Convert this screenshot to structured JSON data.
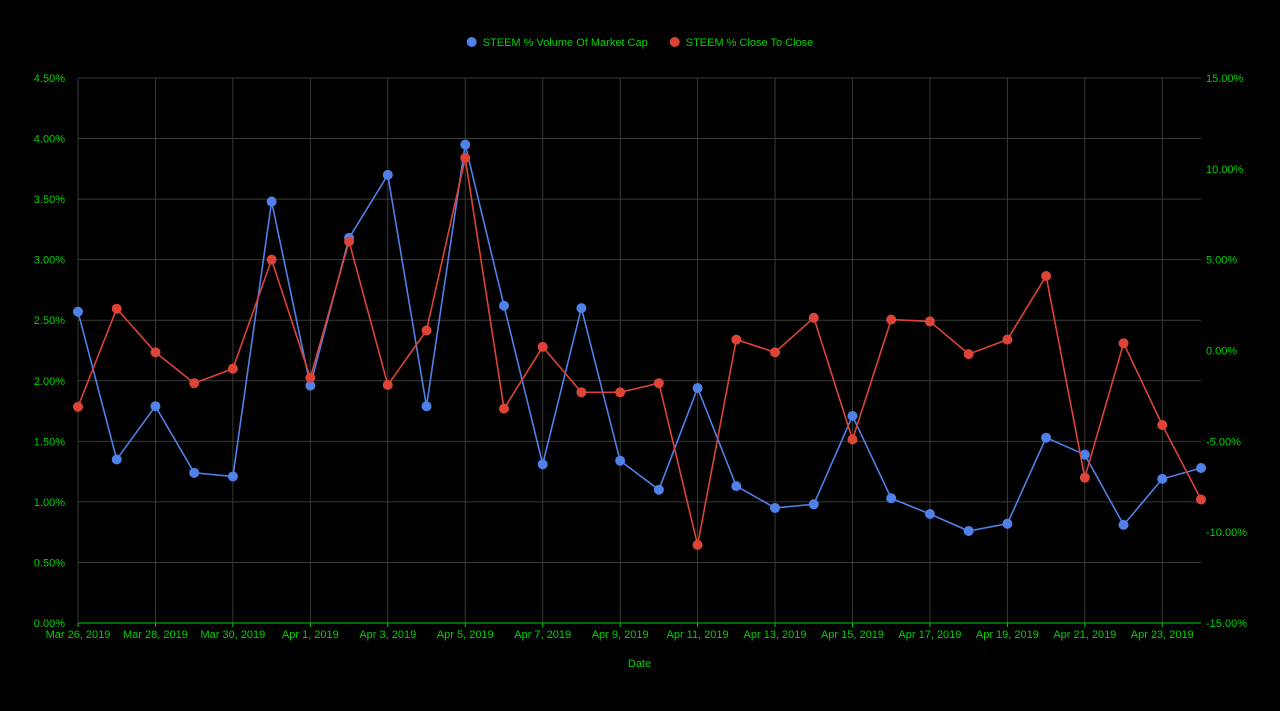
{
  "chart_data": {
    "type": "line",
    "xlabel": "Date",
    "x": [
      "Mar 26, 2019",
      "Mar 27, 2019",
      "Mar 28, 2019",
      "Mar 29, 2019",
      "Mar 30, 2019",
      "Mar 31, 2019",
      "Apr 1, 2019",
      "Apr 2, 2019",
      "Apr 3, 2019",
      "Apr 4, 2019",
      "Apr 5, 2019",
      "Apr 6, 2019",
      "Apr 7, 2019",
      "Apr 8, 2019",
      "Apr 9, 2019",
      "Apr 10, 2019",
      "Apr 11, 2019",
      "Apr 12, 2019",
      "Apr 13, 2019",
      "Apr 14, 2019",
      "Apr 15, 2019",
      "Apr 16, 2019",
      "Apr 17, 2019",
      "Apr 18, 2019",
      "Apr 19, 2019",
      "Apr 20, 2019",
      "Apr 21, 2019",
      "Apr 22, 2019",
      "Apr 23, 2019",
      "Apr 24, 2019"
    ],
    "x_tick_labels": [
      "Mar 26, 2019",
      "Mar 28, 2019",
      "Mar 30, 2019",
      "Apr 1, 2019",
      "Apr 3, 2019",
      "Apr 5, 2019",
      "Apr 7, 2019",
      "Apr 9, 2019",
      "Apr 11, 2019",
      "Apr 13, 2019",
      "Apr 15, 2019",
      "Apr 17, 2019",
      "Apr 19, 2019",
      "Apr 21, 2019",
      "Apr 23, 2019"
    ],
    "y_left": {
      "ylim": [
        0,
        4.5
      ],
      "ticks": [
        0,
        0.5,
        1.0,
        1.5,
        2.0,
        2.5,
        3.0,
        3.5,
        4.0,
        4.5
      ],
      "tick_labels": [
        "0.00%",
        "0.50%",
        "1.00%",
        "1.50%",
        "2.00%",
        "2.50%",
        "3.00%",
        "3.50%",
        "4.00%",
        "4.50%"
      ]
    },
    "y_right": {
      "ylim": [
        -15,
        15
      ],
      "ticks": [
        -15,
        -10,
        -5,
        0,
        5,
        10,
        15
      ],
      "tick_labels": [
        "-15.00%",
        "-10.00%",
        "-5.00%",
        "0.00%",
        "5.00%",
        "10.00%",
        "15.00%"
      ]
    },
    "series": [
      {
        "name": "STEEM % Volume Of Market Cap",
        "axis": "left",
        "color": "#4f81e8",
        "values": [
          2.57,
          1.35,
          1.79,
          1.24,
          1.21,
          3.48,
          1.96,
          3.18,
          3.7,
          1.79,
          3.95,
          2.62,
          1.31,
          2.6,
          1.34,
          1.1,
          1.94,
          1.13,
          0.95,
          0.98,
          1.71,
          1.03,
          0.9,
          0.76,
          0.82,
          1.53,
          1.39,
          0.81,
          1.19,
          1.28
        ]
      },
      {
        "name": "STEEM % Close To Close",
        "axis": "right",
        "color": "#db4437",
        "values": [
          -3.1,
          2.3,
          -0.1,
          -1.8,
          -1.0,
          5.0,
          -1.5,
          6.0,
          -1.9,
          1.1,
          10.6,
          -3.2,
          0.2,
          -2.3,
          -2.3,
          -1.8,
          -10.7,
          0.6,
          -0.1,
          1.8,
          -4.9,
          1.7,
          1.6,
          -0.2,
          0.6,
          4.1,
          -7.0,
          0.4,
          -4.1,
          -8.2
        ]
      }
    ],
    "legend_position": "top-center",
    "grid": true
  },
  "colors": {
    "background": "#000000",
    "text": "#00d300",
    "grid": "#3a3a3a"
  }
}
